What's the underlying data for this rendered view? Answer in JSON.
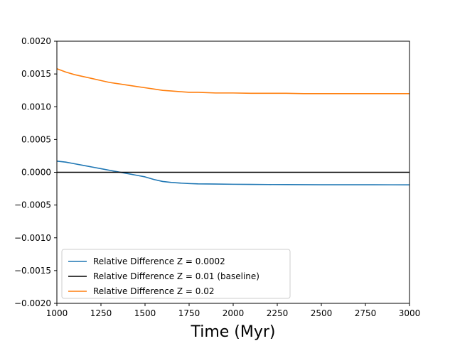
{
  "chart_data": {
    "type": "line",
    "title": "",
    "xlabel": "Time (Myr)",
    "ylabel": "",
    "xlim": [
      1000,
      3000
    ],
    "ylim": [
      -0.002,
      0.002
    ],
    "x_ticks": [
      1000,
      1250,
      1500,
      1750,
      2000,
      2250,
      2500,
      2750,
      3000
    ],
    "x_tick_labels": [
      "1000",
      "1250",
      "1500",
      "1750",
      "2000",
      "2250",
      "2500",
      "2750",
      "3000"
    ],
    "y_ticks": [
      -0.002,
      -0.0015,
      -0.001,
      -0.0005,
      0,
      0.0005,
      0.001,
      0.0015,
      0.002
    ],
    "y_tick_labels": [
      "−0.0020",
      "−0.0015",
      "−0.0010",
      "−0.0005",
      "0.0000",
      "0.0005",
      "0.0010",
      "0.0015",
      "0.0020"
    ],
    "grid": false,
    "legend_position": "lower-left",
    "series": [
      {
        "name": "Relative Difference Z = 0.0002",
        "color": "#1f77b4",
        "x": [
          1000,
          1050,
          1100,
          1150,
          1200,
          1250,
          1300,
          1350,
          1400,
          1450,
          1500,
          1550,
          1600,
          1650,
          1700,
          1750,
          1800,
          1900,
          2000,
          2100,
          2200,
          2300,
          2400,
          2500,
          2600,
          2700,
          2800,
          2900,
          3000
        ],
        "y": [
          0.00017,
          0.000155,
          0.00013,
          0.000105,
          8e-05,
          5.5e-05,
          3e-05,
          5e-06,
          -2e-05,
          -4.5e-05,
          -7e-05,
          -0.00011,
          -0.00014,
          -0.000155,
          -0.000165,
          -0.000172,
          -0.000177,
          -0.00018,
          -0.000183,
          -0.000185,
          -0.000187,
          -0.000188,
          -0.000189,
          -0.00019,
          -0.00019,
          -0.00019,
          -0.00019,
          -0.000191,
          -0.000192
        ]
      },
      {
        "name": "Relative Difference Z = 0.01 (baseline)",
        "color": "#000000",
        "x": [
          1000,
          3000
        ],
        "y": [
          0,
          0
        ]
      },
      {
        "name": "Relative Difference Z = 0.02",
        "color": "#ff7f0e",
        "x": [
          1000,
          1050,
          1100,
          1150,
          1200,
          1250,
          1300,
          1350,
          1400,
          1450,
          1500,
          1550,
          1600,
          1650,
          1700,
          1750,
          1800,
          1900,
          2000,
          2100,
          2200,
          2300,
          2400,
          2500,
          2600,
          2700,
          2800,
          2900,
          3000
        ],
        "y": [
          0.00158,
          0.00153,
          0.00149,
          0.00146,
          0.00143,
          0.0014,
          0.00137,
          0.00135,
          0.00133,
          0.00131,
          0.00129,
          0.00127,
          0.00125,
          0.00124,
          0.00123,
          0.00122,
          0.00122,
          0.00121,
          0.00121,
          0.001205,
          0.001205,
          0.001205,
          0.0012,
          0.0012,
          0.0012,
          0.0012,
          0.0012,
          0.0012,
          0.0012
        ]
      }
    ]
  }
}
